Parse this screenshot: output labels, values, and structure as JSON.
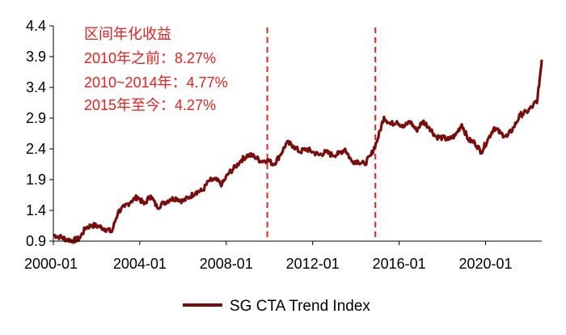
{
  "chart_data": {
    "type": "line",
    "title": "",
    "xlabel": "",
    "ylabel": "",
    "xlim": [
      2000.0,
      2022.6
    ],
    "ylim": [
      0.9,
      4.4
    ],
    "x_ticks": [
      {
        "label": "2000-01",
        "value": 2000.0
      },
      {
        "label": "2004-01",
        "value": 2004.0
      },
      {
        "label": "2008-01",
        "value": 2008.0
      },
      {
        "label": "2012-01",
        "value": 2012.0
      },
      {
        "label": "2016-01",
        "value": 2016.0
      },
      {
        "label": "2020-01",
        "value": 2020.0
      }
    ],
    "y_ticks": [
      {
        "label": "0.9",
        "value": 0.9
      },
      {
        "label": "1.4",
        "value": 1.4
      },
      {
        "label": "1.9",
        "value": 1.9
      },
      {
        "label": "2.4",
        "value": 2.4
      },
      {
        "label": "2.9",
        "value": 2.9
      },
      {
        "label": "3.4",
        "value": 3.4
      },
      {
        "label": "3.9",
        "value": 3.9
      },
      {
        "label": "4.4",
        "value": 4.4
      }
    ],
    "series": [
      {
        "name": "SG CTA Trend Index",
        "color": "#7b0c0c",
        "x": [
          2000.0,
          2000.3,
          2000.6,
          2000.9,
          2001.2,
          2001.5,
          2001.8,
          2002.1,
          2002.4,
          2002.7,
          2003.0,
          2003.3,
          2003.6,
          2003.9,
          2004.2,
          2004.5,
          2004.8,
          2005.1,
          2005.4,
          2005.7,
          2006.0,
          2006.3,
          2006.6,
          2006.9,
          2007.2,
          2007.5,
          2007.8,
          2008.1,
          2008.4,
          2008.7,
          2009.0,
          2009.3,
          2009.6,
          2009.9,
          2010.2,
          2010.5,
          2010.8,
          2011.1,
          2011.4,
          2011.7,
          2012.0,
          2012.3,
          2012.6,
          2012.9,
          2013.2,
          2013.5,
          2013.8,
          2014.1,
          2014.4,
          2014.7,
          2015.0,
          2015.3,
          2015.6,
          2015.9,
          2016.2,
          2016.5,
          2016.8,
          2017.1,
          2017.4,
          2017.7,
          2018.0,
          2018.3,
          2018.6,
          2018.9,
          2019.2,
          2019.5,
          2019.8,
          2020.1,
          2020.4,
          2020.7,
          2021.0,
          2021.3,
          2021.6,
          2021.9,
          2022.2,
          2022.4,
          2022.6
        ],
        "values": [
          1.0,
          0.97,
          0.93,
          0.91,
          0.94,
          1.12,
          1.16,
          1.14,
          1.1,
          1.05,
          1.38,
          1.46,
          1.55,
          1.62,
          1.5,
          1.64,
          1.45,
          1.52,
          1.58,
          1.6,
          1.55,
          1.62,
          1.7,
          1.72,
          1.88,
          1.9,
          1.82,
          2.0,
          2.1,
          2.22,
          2.3,
          2.28,
          2.2,
          2.22,
          2.15,
          2.3,
          2.5,
          2.45,
          2.35,
          2.4,
          2.35,
          2.3,
          2.35,
          2.3,
          2.32,
          2.4,
          2.2,
          2.2,
          2.15,
          2.3,
          2.55,
          2.92,
          2.8,
          2.85,
          2.75,
          2.85,
          2.7,
          2.85,
          2.75,
          2.6,
          2.58,
          2.55,
          2.62,
          2.8,
          2.55,
          2.5,
          2.35,
          2.55,
          2.75,
          2.65,
          2.6,
          2.75,
          2.95,
          3.0,
          3.1,
          3.2,
          3.85
        ]
      }
    ],
    "reference_lines": [
      {
        "x": 2009.9,
        "color": "#e8201d",
        "style": "dashed"
      },
      {
        "x": 2014.9,
        "color": "#e8201d",
        "style": "dashed"
      }
    ],
    "annotation": {
      "heading": "区间年化收益",
      "lines": [
        "2010年之前：8.27%",
        "2010~2014年：4.77%",
        "2015年至今：4.27%"
      ]
    },
    "legend": {
      "position": "bottom-center",
      "label": "SG CTA Trend Index"
    },
    "grid": false
  }
}
